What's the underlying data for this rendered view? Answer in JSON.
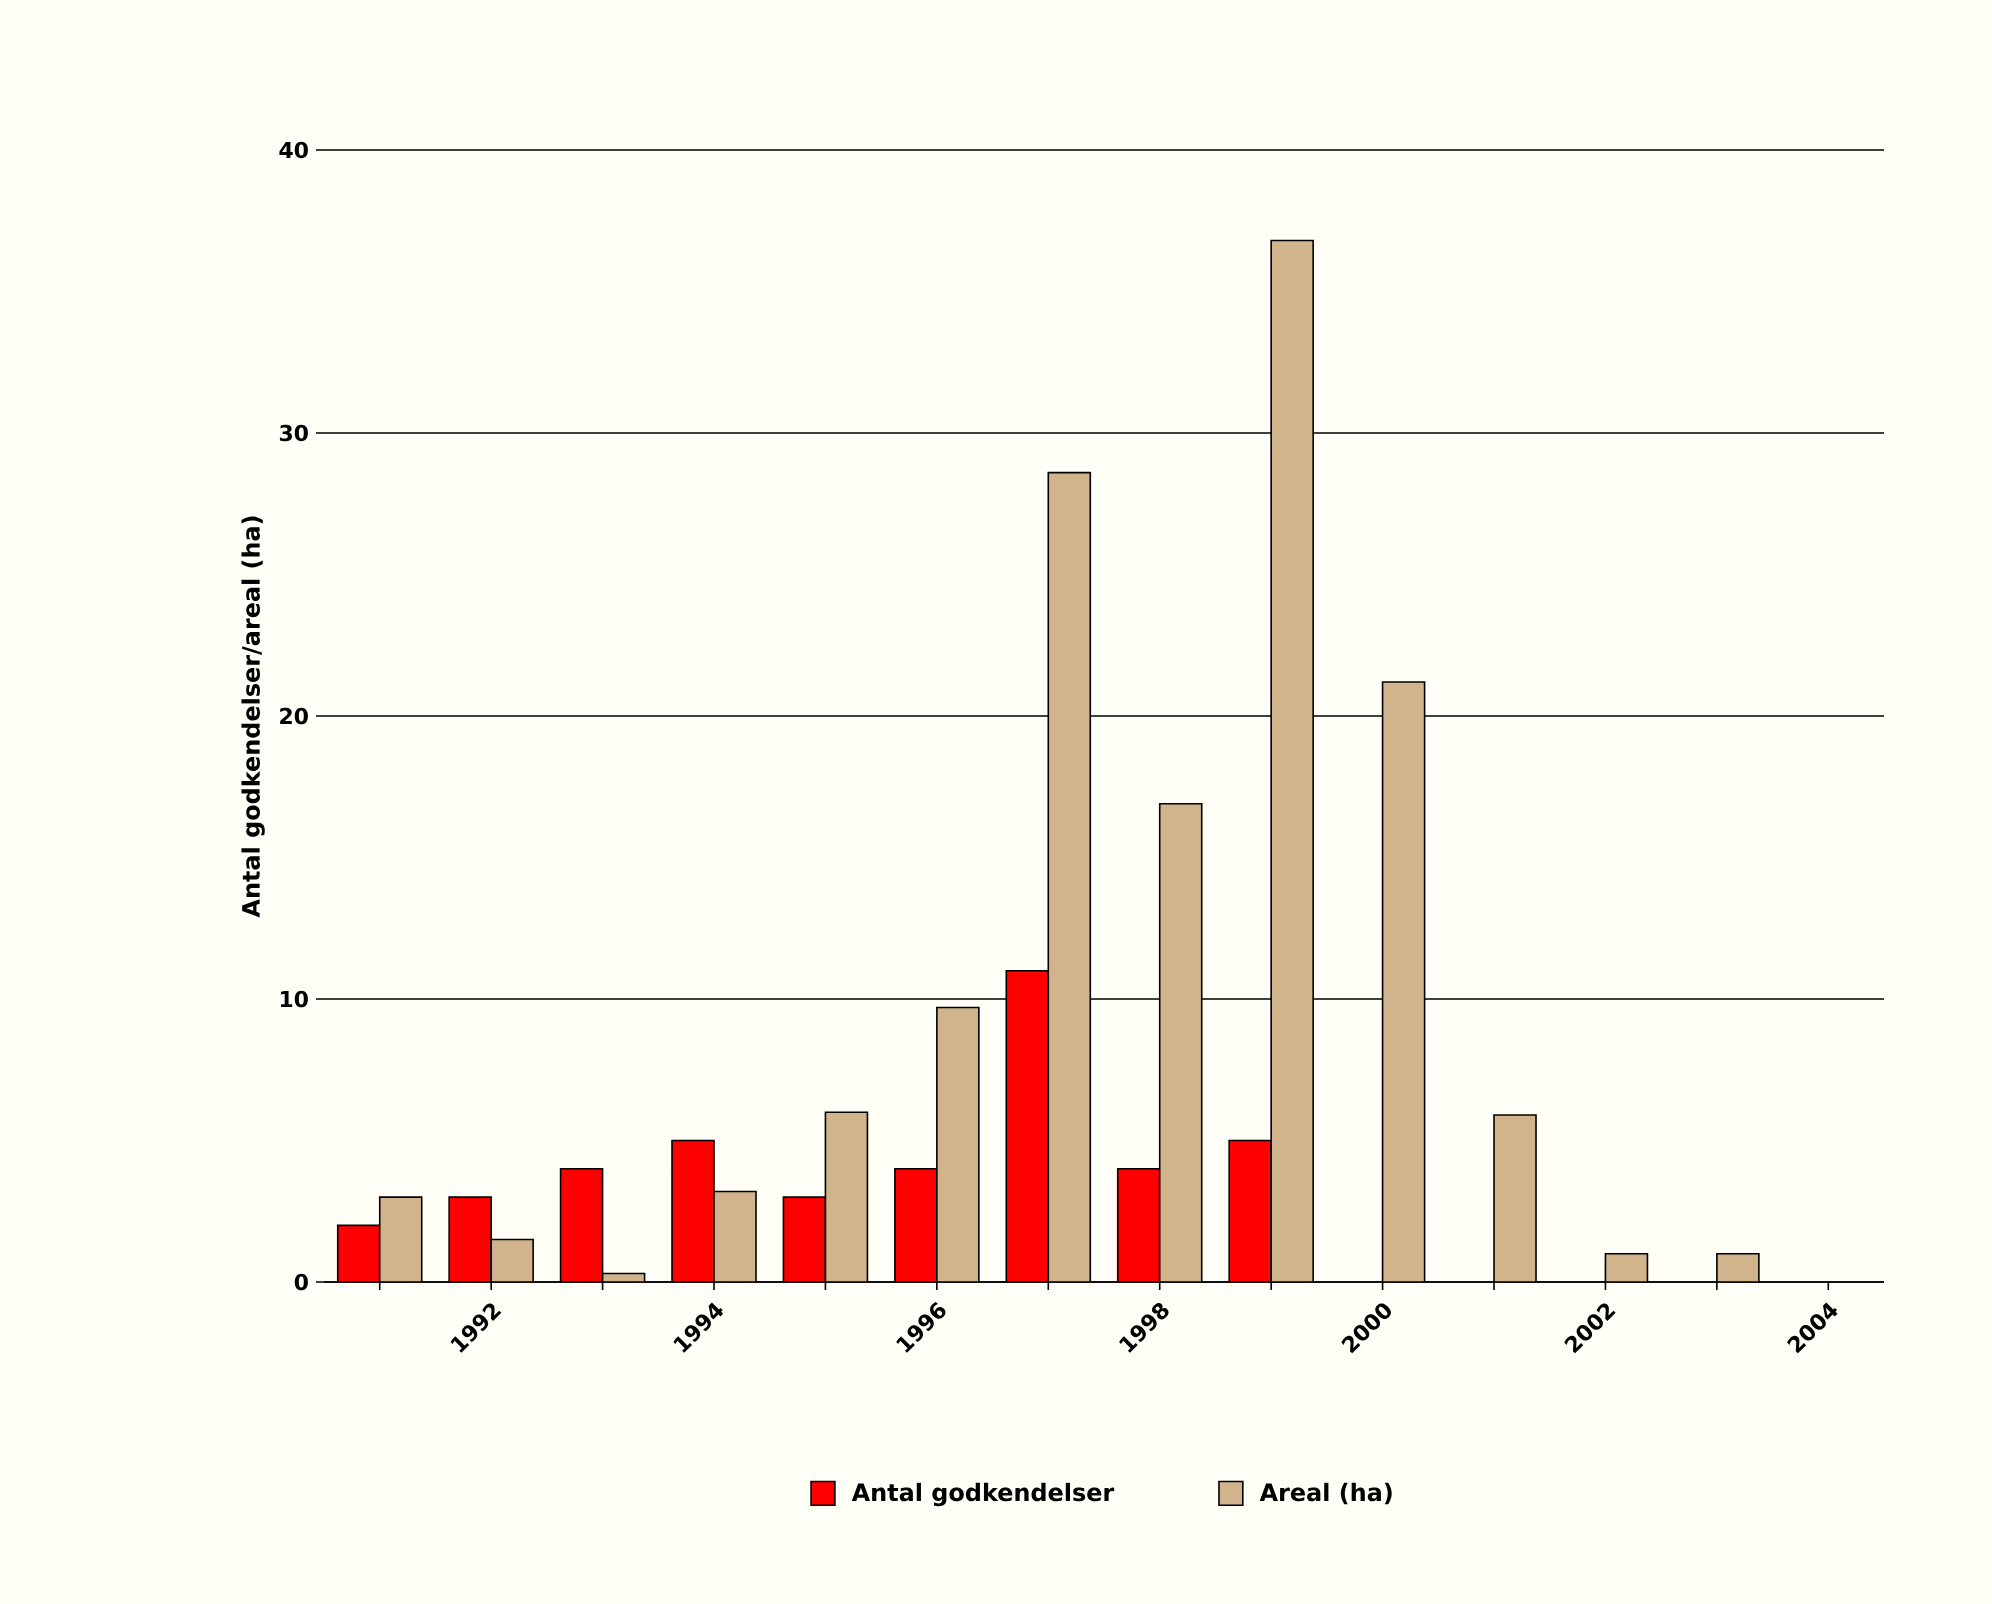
{
  "chart_data": {
    "type": "bar",
    "ylabel": "Antal godkendelser/areal (ha)",
    "categories": [
      null,
      "1992",
      null,
      "1994",
      null,
      "1996",
      null,
      "1998",
      null,
      "2000",
      null,
      "2002",
      null,
      "2004"
    ],
    "series": [
      {
        "name": "Antal godkendelser",
        "color": "#ff0000",
        "values": [
          2,
          3,
          4,
          5,
          3,
          4,
          11,
          4,
          5,
          null,
          null,
          null,
          null,
          null
        ]
      },
      {
        "name": "Areal (ha)",
        "color": "#d2b48c",
        "values": [
          3,
          1.5,
          0.3,
          3.2,
          6,
          9.7,
          28.6,
          16.9,
          36.8,
          21.2,
          5.9,
          1,
          1,
          null
        ]
      }
    ],
    "ylim": [
      0,
      40
    ],
    "yticks": [
      0,
      10,
      20,
      30,
      40
    ],
    "grid": "y",
    "legend": "bottom"
  }
}
